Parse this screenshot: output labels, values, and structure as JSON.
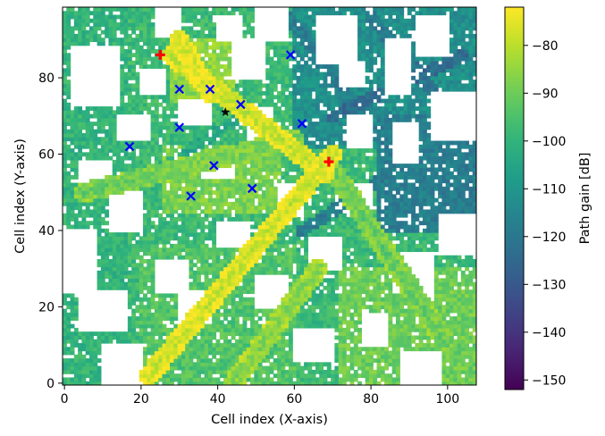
{
  "chart_data": {
    "type": "heatmap",
    "title": "",
    "xlabel": "Cell index (X-axis)",
    "ylabel": "Cell index (Y-axis)",
    "xlim": [
      -0.5,
      107.5
    ],
    "ylim": [
      -0.5,
      98.5
    ],
    "x_ticks": [
      0,
      20,
      40,
      60,
      80,
      100
    ],
    "y_ticks": [
      0,
      20,
      40,
      60,
      80
    ],
    "colorbar": {
      "label": "Path gain [dB]",
      "colormap": "viridis",
      "range": [
        -152,
        -72
      ],
      "ticks": [
        -80,
        -90,
        -100,
        -110,
        -120,
        -130,
        -140,
        -150
      ],
      "tick_labels": [
        "−80",
        "−90",
        "−100",
        "−110",
        "−120",
        "−130",
        "−140",
        "−150"
      ]
    },
    "markers": {
      "transmitters": {
        "symbol": "plus",
        "color": "#ff0000",
        "points": [
          [
            25,
            86
          ],
          [
            69,
            58
          ]
        ]
      },
      "receivers": {
        "symbol": "x",
        "color": "#0000ff",
        "points": [
          [
            59,
            86
          ],
          [
            30,
            77
          ],
          [
            38,
            77
          ],
          [
            46,
            73
          ],
          [
            62,
            68
          ],
          [
            30,
            67
          ],
          [
            17,
            62
          ],
          [
            39,
            57
          ],
          [
            49,
            51
          ],
          [
            33,
            49
          ]
        ]
      },
      "reference": {
        "symbol": "star",
        "color": "#000000",
        "points": [
          [
            42,
            71
          ]
        ]
      }
    },
    "field_regions": [
      {
        "name": "background",
        "gain": -98
      },
      {
        "name": "west-band",
        "gain": -100,
        "cells": [
          [
            0,
            0,
            16,
            98
          ]
        ]
      },
      {
        "name": "north-east-dark",
        "gain": -112,
        "cells": [
          [
            60,
            62,
            107,
            98
          ]
        ]
      },
      {
        "name": "east-dark",
        "gain": -118,
        "cells": [
          [
            82,
            40,
            107,
            70
          ]
        ]
      },
      {
        "name": "south-west",
        "gain": -94,
        "cells": [
          [
            20,
            0,
            60,
            36
          ]
        ]
      },
      {
        "name": "central-plaza",
        "gain": -88,
        "cells": [
          [
            26,
            45,
            56,
            62
          ]
        ]
      },
      {
        "name": "south-east-plaza",
        "gain": -90,
        "cells": [
          [
            72,
            0,
            107,
            30
          ]
        ]
      },
      {
        "name": "north-core",
        "gain": -86,
        "cells": [
          [
            28,
            74,
            44,
            90
          ]
        ]
      }
    ],
    "field_beams": [
      {
        "name": "main-diagonal",
        "from": [
          22,
          2
        ],
        "to": [
          70,
          60
        ],
        "gain": -79
      },
      {
        "name": "north-diagonal",
        "from": [
          28,
          86
        ],
        "to": [
          68,
          55
        ],
        "gain": -80
      },
      {
        "name": "north-spur",
        "from": [
          30,
          90
        ],
        "to": [
          38,
          76
        ],
        "gain": -78
      },
      {
        "name": "west-spur",
        "from": [
          5,
          50
        ],
        "to": [
          60,
          64
        ],
        "gain": -92
      },
      {
        "name": "south-spur",
        "from": [
          44,
          0
        ],
        "to": [
          66,
          30
        ],
        "gain": -88
      },
      {
        "name": "east-spur",
        "from": [
          70,
          56
        ],
        "to": [
          100,
          10
        ],
        "gain": -92
      }
    ],
    "field_dark_streaks": [
      {
        "from": [
          58,
          96
        ],
        "to": [
          98,
          44
        ],
        "gain": -118
      },
      {
        "from": [
          80,
          96
        ],
        "to": [
          107,
          64
        ],
        "gain": -120
      },
      {
        "from": [
          70,
          70
        ],
        "to": [
          104,
          86
        ],
        "gain": -124
      },
      {
        "from": [
          62,
          40
        ],
        "to": [
          96,
          62
        ],
        "gain": -118
      },
      {
        "from": [
          28,
          58
        ],
        "to": [
          46,
          70
        ],
        "gain": -104
      }
    ],
    "blocked_cells": [
      [
        24,
        91,
        30,
        98
      ],
      [
        2,
        73,
        14,
        88
      ],
      [
        44,
        80,
        52,
        90
      ],
      [
        50,
        90,
        58,
        98
      ],
      [
        40,
        90,
        46,
        96
      ],
      [
        66,
        84,
        76,
        96
      ],
      [
        72,
        78,
        78,
        84
      ],
      [
        84,
        76,
        90,
        90
      ],
      [
        92,
        86,
        100,
        96
      ],
      [
        86,
        58,
        92,
        68
      ],
      [
        96,
        64,
        107,
        76
      ],
      [
        74,
        62,
        80,
        70
      ],
      [
        48,
        62,
        56,
        68
      ],
      [
        48,
        66,
        54,
        72
      ],
      [
        30,
        68,
        38,
        74
      ],
      [
        20,
        76,
        26,
        82
      ],
      [
        14,
        64,
        22,
        70
      ],
      [
        36,
        54,
        44,
        60
      ],
      [
        4,
        52,
        12,
        58
      ],
      [
        12,
        40,
        20,
        50
      ],
      [
        0,
        24,
        8,
        40
      ],
      [
        4,
        14,
        16,
        24
      ],
      [
        10,
        0,
        20,
        10
      ],
      [
        24,
        24,
        32,
        32
      ],
      [
        30,
        16,
        38,
        24
      ],
      [
        50,
        20,
        58,
        28
      ],
      [
        60,
        6,
        70,
        14
      ],
      [
        64,
        30,
        72,
        38
      ],
      [
        86,
        24,
        96,
        34
      ],
      [
        78,
        10,
        84,
        18
      ],
      [
        98,
        34,
        107,
        44
      ],
      [
        88,
        0,
        98,
        8
      ],
      [
        56,
        44,
        62,
        52
      ],
      [
        40,
        36,
        48,
        42
      ],
      [
        74,
        44,
        80,
        52
      ]
    ],
    "field_noise": {
      "amplitude": 5,
      "blocked_fraction": 0.12
    }
  }
}
